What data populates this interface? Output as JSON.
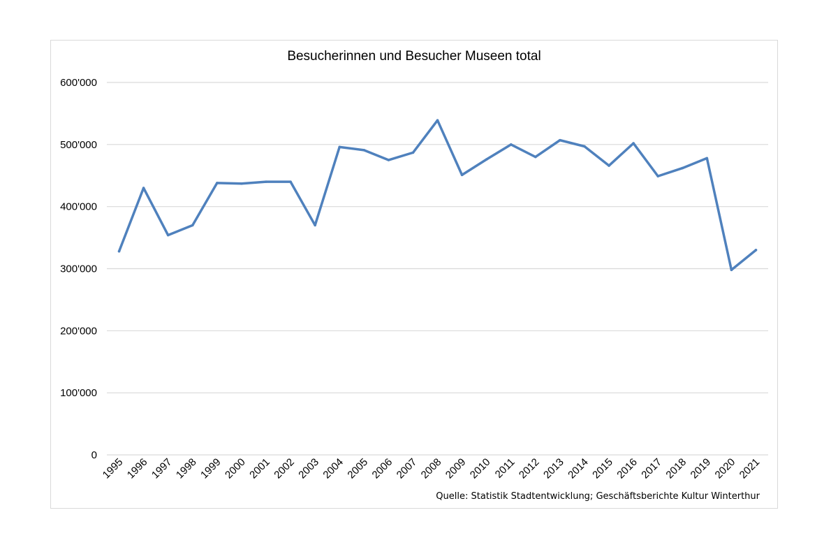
{
  "chart_data": {
    "type": "line",
    "title": "Besucherinnen und Besucher Museen total",
    "xlabel": "",
    "ylabel": "",
    "x": [
      "1995",
      "1996",
      "1997",
      "1998",
      "1999",
      "2000",
      "2001",
      "2002",
      "2003",
      "2004",
      "2005",
      "2006",
      "2007",
      "2008",
      "2009",
      "2010",
      "2011",
      "2012",
      "2013",
      "2014",
      "2015",
      "2016",
      "2017",
      "2018",
      "2019",
      "2020",
      "2021"
    ],
    "series": [
      {
        "values": [
          328000,
          430000,
          354000,
          370000,
          438000,
          437000,
          440000,
          440000,
          370000,
          496000,
          491000,
          475000,
          487000,
          539000,
          451000,
          476000,
          500000,
          480000,
          507000,
          497000,
          466000,
          502000,
          449000,
          462000,
          478000,
          298000,
          330000
        ],
        "color": "#4f81bd"
      }
    ],
    "ylim": [
      0,
      600000
    ],
    "yticks": [
      "0",
      "100'000",
      "200'000",
      "300'000",
      "400'000",
      "500'000",
      "600'000"
    ],
    "grid": true,
    "legend": "none"
  },
  "source": "Quelle: Statistik Stadtentwicklung; Geschäftsberichte Kultur Winterthur"
}
